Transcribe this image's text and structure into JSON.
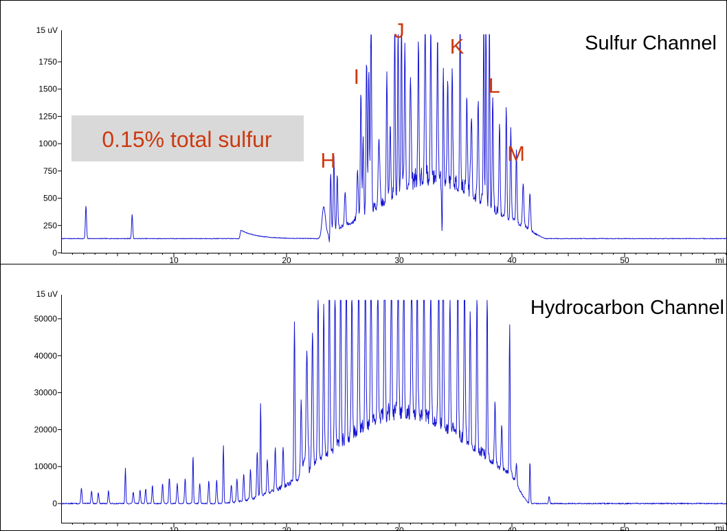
{
  "colors": {
    "trace": "#1414d2",
    "annotation": "#cc3a10",
    "callout_bg": "#d9d9d9",
    "frame": "#000000"
  },
  "callout": {
    "text": "0.15% total sulfur"
  },
  "chart_data": [
    {
      "type": "line",
      "title": "Sulfur Channel",
      "y_unit_label": "15 uV",
      "x_unit_label": "mi",
      "xlim": [
        0,
        60
      ],
      "ylim": [
        0,
        2000
      ],
      "x_ticks": [
        10,
        20,
        30,
        40,
        50
      ],
      "y_ticks": [
        0,
        250,
        500,
        750,
        1000,
        1250,
        1500,
        1750
      ],
      "baseline": 130,
      "annotations": [
        {
          "label": "H",
          "x": 24.0
        },
        {
          "label": "I",
          "x": 27.0
        },
        {
          "label": "J",
          "x": 30.0
        },
        {
          "label": "K",
          "x": 35.3
        },
        {
          "label": "L",
          "x": 38.0
        },
        {
          "label": "M",
          "x": 40.0
        }
      ],
      "peaks": [
        [
          2.2,
          300,
          0.05
        ],
        [
          6.3,
          220,
          0.05
        ],
        [
          23.3,
          280,
          0.15
        ],
        [
          23.9,
          600,
          0.06
        ],
        [
          24.2,
          680,
          0.05
        ],
        [
          24.5,
          500,
          0.05
        ],
        [
          25.2,
          320,
          0.06
        ],
        [
          26.3,
          450,
          0.06
        ],
        [
          26.6,
          1150,
          0.05
        ],
        [
          26.8,
          700,
          0.05
        ],
        [
          27.1,
          1400,
          0.05
        ],
        [
          27.3,
          1300,
          0.05
        ],
        [
          27.5,
          1870,
          0.05
        ],
        [
          28.2,
          600,
          0.07
        ],
        [
          28.9,
          1100,
          0.05
        ],
        [
          29.2,
          700,
          0.05
        ],
        [
          29.6,
          1800,
          0.04
        ],
        [
          29.9,
          1650,
          0.04
        ],
        [
          30.2,
          2000,
          0.04
        ],
        [
          30.5,
          1350,
          0.05
        ],
        [
          31.0,
          1000,
          0.06
        ],
        [
          31.7,
          1250,
          0.05
        ],
        [
          32.3,
          1450,
          0.05
        ],
        [
          32.8,
          1350,
          0.05
        ],
        [
          33.4,
          1250,
          0.05
        ],
        [
          33.9,
          1050,
          0.05
        ],
        [
          34.3,
          900,
          0.05
        ],
        [
          34.7,
          1000,
          0.05
        ],
        [
          35.4,
          1880,
          0.04
        ],
        [
          36.0,
          900,
          0.05
        ],
        [
          36.4,
          700,
          0.06
        ],
        [
          37.0,
          900,
          0.05
        ],
        [
          37.5,
          1650,
          0.04
        ],
        [
          37.7,
          1980,
          0.04
        ],
        [
          38.0,
          1970,
          0.04
        ],
        [
          38.3,
          1050,
          0.05
        ],
        [
          38.9,
          850,
          0.05
        ],
        [
          39.5,
          1000,
          0.05
        ],
        [
          39.9,
          850,
          0.05
        ],
        [
          40.4,
          650,
          0.05
        ],
        [
          41.0,
          400,
          0.06
        ],
        [
          41.6,
          320,
          0.06
        ]
      ],
      "dips": [
        [
          23.8,
          100,
          0.05
        ],
        [
          33.8,
          180,
          0.04
        ]
      ],
      "envelope": {
        "start": 23,
        "end": 43,
        "center": 33,
        "sigma": 4.5,
        "height": 480,
        "noise": 220,
        "seed": 7
      },
      "shoulder": {
        "x": 15.8,
        "height": 85,
        "decay": 1.4,
        "end": 22.5
      }
    },
    {
      "type": "line",
      "title": "Hydrocarbon Channel",
      "y_unit_label": "15 uV",
      "x_unit_label": "mi",
      "xlim": [
        0,
        60
      ],
      "ylim": [
        0,
        55000
      ],
      "x_ticks": [
        10,
        20,
        30,
        40,
        50
      ],
      "y_ticks": [
        0,
        10000,
        20000,
        30000,
        40000,
        50000
      ],
      "baseline": 0,
      "peaks": [
        [
          1.8,
          4200,
          0.05
        ],
        [
          2.7,
          3500,
          0.05
        ],
        [
          3.3,
          3000,
          0.05
        ],
        [
          4.2,
          3400,
          0.05
        ],
        [
          5.7,
          9500,
          0.04
        ],
        [
          6.4,
          3200,
          0.05
        ],
        [
          7.0,
          3600,
          0.05
        ],
        [
          7.5,
          4000,
          0.05
        ],
        [
          8.1,
          4800,
          0.05
        ],
        [
          9.0,
          5500,
          0.05
        ],
        [
          9.6,
          7000,
          0.05
        ],
        [
          10.3,
          5500,
          0.05
        ],
        [
          11.0,
          6800,
          0.05
        ],
        [
          11.7,
          13200,
          0.04
        ],
        [
          12.3,
          5300,
          0.05
        ],
        [
          13.1,
          6200,
          0.05
        ],
        [
          13.8,
          6300,
          0.05
        ],
        [
          14.4,
          15800,
          0.04
        ],
        [
          15.1,
          4800,
          0.05
        ],
        [
          15.6,
          6200,
          0.05
        ],
        [
          16.2,
          7500,
          0.05
        ],
        [
          16.8,
          8000,
          0.05
        ],
        [
          17.4,
          12500,
          0.05
        ],
        [
          17.7,
          25000,
          0.04
        ],
        [
          18.3,
          9500,
          0.05
        ],
        [
          19.0,
          11500,
          0.05
        ],
        [
          19.7,
          10800,
          0.05
        ],
        [
          20.7,
          42500,
          0.05
        ],
        [
          21.3,
          19000,
          0.05
        ],
        [
          21.8,
          29000,
          0.06
        ],
        [
          22.3,
          36000,
          0.06
        ],
        [
          22.8,
          49000,
          0.05
        ],
        [
          23.3,
          42000,
          0.05
        ],
        [
          23.8,
          54000,
          0.05
        ],
        [
          24.3,
          45000,
          0.05
        ],
        [
          24.8,
          49000,
          0.05
        ],
        [
          25.3,
          52000,
          0.05
        ],
        [
          25.8,
          43000,
          0.05
        ],
        [
          26.4,
          54500,
          0.05
        ],
        [
          27.0,
          47000,
          0.05
        ],
        [
          27.5,
          52000,
          0.05
        ],
        [
          28.1,
          44000,
          0.05
        ],
        [
          28.7,
          54000,
          0.05
        ],
        [
          29.3,
          40000,
          0.05
        ],
        [
          29.9,
          44000,
          0.05
        ],
        [
          30.4,
          46000,
          0.05
        ],
        [
          31.1,
          54500,
          0.05
        ],
        [
          31.6,
          42000,
          0.05
        ],
        [
          32.2,
          50000,
          0.05
        ],
        [
          32.8,
          38000,
          0.05
        ],
        [
          33.5,
          48000,
          0.05
        ],
        [
          33.9,
          54500,
          0.05
        ],
        [
          34.5,
          36000,
          0.05
        ],
        [
          35.2,
          46000,
          0.05
        ],
        [
          35.8,
          51000,
          0.05
        ],
        [
          36.3,
          36000,
          0.05
        ],
        [
          36.9,
          42000,
          0.05
        ],
        [
          37.8,
          50500,
          0.04
        ],
        [
          38.5,
          17000,
          0.05
        ],
        [
          39.1,
          12000,
          0.05
        ],
        [
          39.8,
          40500,
          0.04
        ],
        [
          40.4,
          6000,
          0.05
        ],
        [
          41.6,
          11500,
          0.04
        ],
        [
          43.3,
          2000,
          0.05
        ]
      ],
      "envelope": {
        "start": 21,
        "end": 41.5,
        "center": 30.5,
        "sigma": 6.3,
        "height": 22500,
        "noise": 5500,
        "seed": 13
      },
      "rise": {
        "from": 14,
        "to": 21,
        "height": 6000,
        "noise": 1500
      }
    }
  ]
}
